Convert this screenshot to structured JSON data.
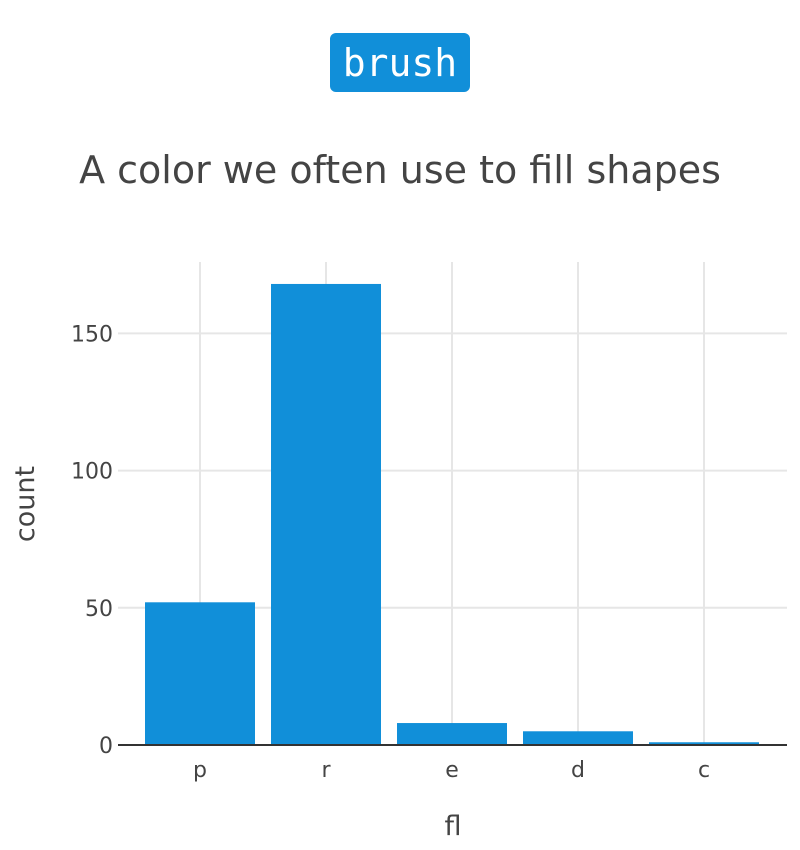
{
  "badge": {
    "label": "brush"
  },
  "colors": {
    "bar": "#118fd9",
    "grid": "#e6e6e6",
    "axis": "#333333",
    "text": "#444444"
  },
  "chart_data": {
    "type": "bar",
    "title": "A color we often use to fill shapes",
    "xlabel": "fl",
    "ylabel": "count",
    "categories": [
      "p",
      "r",
      "e",
      "d",
      "c"
    ],
    "values": [
      52,
      168,
      8,
      5,
      1
    ],
    "ylim": [
      0,
      176
    ],
    "yticks": [
      0,
      50,
      100,
      150
    ],
    "grid": true,
    "legend": "none"
  }
}
